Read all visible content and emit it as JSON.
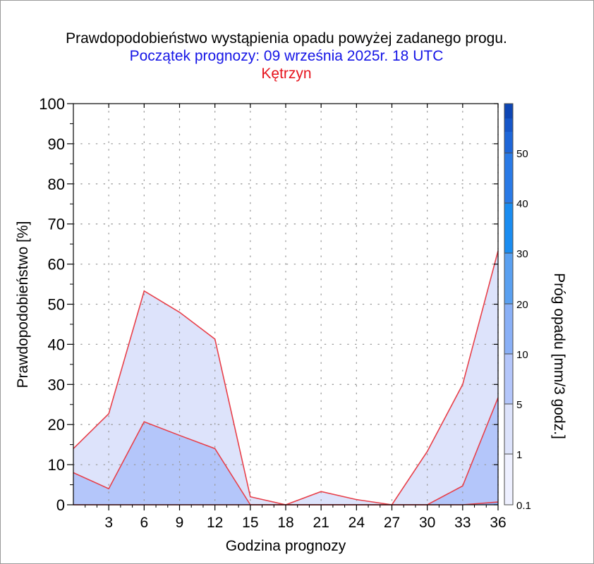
{
  "titles": {
    "line1": "Prawdopodobieństwo wystąpienia opadu powyżej zadanego progu.",
    "line2": "Początek prognozy: 09 września 2025r. 18 UTC",
    "line3": "Kętrzyn"
  },
  "colors": {
    "title_main": "#000000",
    "title_start": "#1515e6",
    "title_station": "#e6141e",
    "series_line": "#e8404a",
    "grid_dots": "#9a9a9a",
    "colorbar": [
      "#eef0ff",
      "#dde3fb",
      "#b4c6fa",
      "#8ab0f6",
      "#5aa0f0",
      "#1a8cf0",
      "#2a7ae6",
      "#1e66d8",
      "#1656c8",
      "#0e46b4",
      "#08389e"
    ]
  },
  "chart_data": {
    "type": "area",
    "title": "Prawdopodobieństwo wystąpienia opadu powyżej zadanego progu.",
    "xlabel": "Godzina prognozy",
    "ylabel": "Prawdopodobieństwo [%]",
    "xlim": [
      0,
      36
    ],
    "ylim": [
      0,
      100
    ],
    "x": [
      0,
      3,
      6,
      9,
      12,
      15,
      18,
      21,
      24,
      27,
      30,
      33,
      36
    ],
    "x_ticks": [
      3,
      6,
      9,
      12,
      15,
      18,
      21,
      24,
      27,
      30,
      33,
      36
    ],
    "y_ticks": [
      0,
      10,
      20,
      30,
      40,
      50,
      60,
      70,
      80,
      90,
      100
    ],
    "grid": true,
    "series": [
      {
        "name": "0.1",
        "color": "#dde3fb",
        "values": [
          14,
          22.7,
          53.3,
          48,
          41.3,
          2,
          0,
          3.3,
          1.3,
          0,
          13.3,
          30,
          63.3
        ]
      },
      {
        "name": "1",
        "color": "#b4c6fa",
        "values": [
          8,
          4,
          20.7,
          17.3,
          14,
          0,
          0,
          0,
          0,
          0,
          0,
          4.7,
          26.7
        ]
      },
      {
        "name": "5",
        "color": "#8ab0f6",
        "values": [
          0,
          0,
          0,
          0,
          0,
          0,
          0,
          0,
          0,
          0,
          0,
          0,
          0.7
        ]
      }
    ],
    "colorbar": {
      "label": "Próg opadu [mm/3 godz.]",
      "tick_labels": [
        "0.1",
        "1",
        "5",
        "10",
        "20",
        "30",
        "40",
        "50"
      ]
    }
  }
}
